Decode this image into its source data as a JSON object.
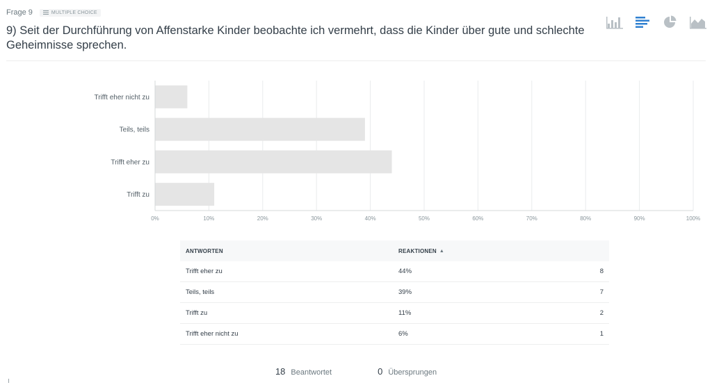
{
  "question": {
    "number_label": "Frage 9",
    "type_label": "MULTIPLE CHOICE",
    "title": "9) Seit der Durchführung von Affenstarke Kinder beobachte ich vermehrt, dass die Kinder über gute und schlechte Geheimnisse sprechen."
  },
  "chart_toggle": {
    "icons": [
      "vertical-bar-chart-icon",
      "horizontal-bar-chart-icon",
      "pie-chart-icon",
      "area-chart-icon"
    ],
    "active": "horizontal-bar-chart-icon",
    "active_color": "#2f80d1",
    "inactive_color": "#b9c0c5"
  },
  "chart_data": {
    "type": "bar",
    "orientation": "horizontal",
    "categories": [
      "Trifft eher nicht zu",
      "Teils, teils",
      "Trifft eher zu",
      "Trifft zu"
    ],
    "values": [
      6,
      39,
      44,
      11
    ],
    "x_ticks": [
      "0%",
      "10%",
      "20%",
      "30%",
      "40%",
      "50%",
      "60%",
      "70%",
      "80%",
      "90%",
      "100%"
    ],
    "xlim": [
      0,
      100
    ],
    "grid": true,
    "bar_color": "#e5e5e5",
    "title": "",
    "xlabel": "",
    "ylabel": ""
  },
  "table": {
    "headers": [
      "ANTWORTEN",
      "REAKTIONEN",
      ""
    ],
    "rows": [
      {
        "answer": "Trifft eher zu",
        "percent": "44%",
        "count": "8"
      },
      {
        "answer": "Teils, teils",
        "percent": "39%",
        "count": "7"
      },
      {
        "answer": "Trifft zu",
        "percent": "11%",
        "count": "2"
      },
      {
        "answer": "Trifft eher nicht zu",
        "percent": "6%",
        "count": "1"
      }
    ]
  },
  "summary": {
    "answered_count": "18",
    "answered_label": "Beantwortet",
    "skipped_count": "0",
    "skipped_label": "Übersprungen"
  }
}
